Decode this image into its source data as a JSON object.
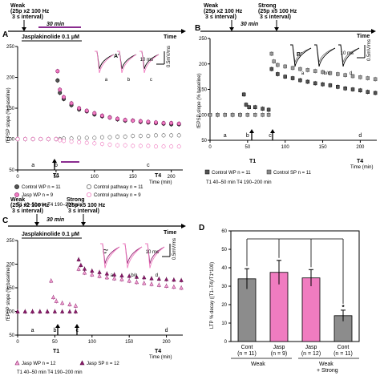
{
  "colors": {
    "black": "#000000",
    "magenta": "#8b1a6b",
    "pink": "#f07cc0",
    "grey": "#8c8c8c",
    "dark": "#444444",
    "purple_bar": "#8a2c8f",
    "light_pink": "#f4a6d3"
  },
  "common": {
    "time_label": "Time",
    "time_axis_label": "Time (min)",
    "ylabel": "fEPSP slope (% baseline)",
    "windows_note": "T1 40–50 min  T4 190–200 min",
    "T1": "T1",
    "T4": "T4",
    "weak_stim": [
      "Weak",
      "(25p x2 100 Hz",
      "3 s interval)"
    ],
    "strong_stim": [
      "Strong",
      "(25p x5 100 Hz",
      "3 s interval)"
    ],
    "scale_ms": "10 ms",
    "scale_mv": "0.5mV/ms"
  },
  "panels": {
    "A": {
      "letter": "A",
      "inset_letter": "A′",
      "interval_label": "30 min",
      "drug_label": "Jasplakinolide 0.1 μM",
      "trace_labels": [
        "a",
        "b",
        "c"
      ],
      "phase_labels": [
        "a",
        "b",
        "c"
      ],
      "legend": [
        "Control WP n = 11",
        "Control pathway n = 11",
        "Jasp WP n = 9",
        "Control pathway n = 9"
      ]
    },
    "B": {
      "letter": "B",
      "inset_letter": "B′",
      "interval_label": "30 min",
      "trace_labels": [
        "a",
        "b/c",
        "d"
      ],
      "phase_labels": [
        "a",
        "b",
        "c",
        "d"
      ],
      "legend": [
        "Control WP n = 11",
        "Control SP n = 11"
      ]
    },
    "C": {
      "letter": "C",
      "inset_letter": "C′",
      "interval_label": "30 min",
      "drug_label": "Jasplakinolide 0.1 μM",
      "trace_labels": [
        "a",
        "b/c",
        "d"
      ],
      "phase_labels": [
        "a",
        "b",
        "c",
        "d"
      ],
      "legend": [
        "Jasp WP n = 12",
        "Jasp SP n = 12"
      ]
    },
    "D": {
      "letter": "D",
      "ylabel": "LTP % decay ((T1–T4)/T1*100)",
      "group_weak": "Weak",
      "group_weak_strong": [
        "Weak",
        "+ Strong"
      ],
      "significance": "*"
    }
  },
  "chart_data": [
    {
      "panel": "A",
      "type": "scatter",
      "xlabel": "Time (min)",
      "ylabel": "fEPSP slope (% baseline)",
      "xlim": [
        0,
        200
      ],
      "ylim": [
        50,
        250
      ],
      "xticks": [
        0,
        50,
        100,
        150,
        200
      ],
      "yticks": [
        50,
        100,
        150,
        200,
        250
      ],
      "phase_x": [
        20,
        50,
        170
      ],
      "series": [
        {
          "name": "Control WP n = 11",
          "x": [
            0,
            10,
            20,
            30,
            40,
            50,
            52,
            55,
            60,
            70,
            80,
            90,
            100,
            110,
            120,
            130,
            140,
            150,
            160,
            170,
            180,
            190,
            200,
            210
          ],
          "y": [
            100,
            100,
            100,
            100,
            100,
            100,
            195,
            175,
            165,
            155,
            148,
            145,
            140,
            137,
            135,
            132,
            130,
            130,
            128,
            127,
            126,
            125,
            124,
            124
          ]
        },
        {
          "name": "Control pathway n = 11",
          "x": [
            0,
            10,
            20,
            30,
            40,
            50,
            55,
            60,
            70,
            80,
            90,
            100,
            110,
            120,
            130,
            140,
            150,
            160,
            170,
            180,
            190,
            200,
            210
          ],
          "y": [
            100,
            100,
            100,
            100,
            100,
            100,
            100,
            101,
            101,
            102,
            102,
            102,
            103,
            103,
            104,
            104,
            105,
            105,
            105,
            106,
            106,
            106,
            106
          ]
        },
        {
          "name": "Jasp WP n = 9",
          "x": [
            0,
            10,
            20,
            30,
            40,
            50,
            52,
            55,
            60,
            70,
            80,
            90,
            100,
            110,
            120,
            130,
            140,
            150,
            160,
            170,
            180,
            190,
            200,
            210
          ],
          "y": [
            100,
            100,
            100,
            100,
            100,
            100,
            210,
            180,
            168,
            158,
            150,
            146,
            142,
            138,
            135,
            133,
            131,
            130,
            129,
            128,
            127,
            126,
            126,
            125
          ]
        },
        {
          "name": "Control pathway n = 9",
          "x": [
            0,
            10,
            20,
            30,
            40,
            50,
            55,
            60,
            70,
            80,
            90,
            100,
            110,
            120,
            130,
            140,
            150,
            160,
            170,
            180,
            190,
            200,
            210
          ],
          "y": [
            100,
            100,
            100,
            100,
            100,
            100,
            98,
            97,
            96,
            95,
            94,
            93,
            92,
            91,
            90,
            90,
            89,
            89,
            89,
            88,
            88,
            88,
            88
          ]
        }
      ]
    },
    {
      "panel": "B",
      "type": "scatter",
      "xlabel": "Time (min)",
      "ylabel": "fEPSP slope (% baseline)",
      "xlim": [
        0,
        220
      ],
      "ylim": [
        50,
        250
      ],
      "xticks": [
        0,
        50,
        100,
        150,
        200
      ],
      "yticks": [
        50,
        100,
        150,
        200,
        250
      ],
      "phase_x": [
        20,
        50,
        80,
        200
      ],
      "series": [
        {
          "name": "Control WP n = 11",
          "x": [
            0,
            10,
            20,
            30,
            40,
            45,
            48,
            52,
            60,
            70,
            78,
            82,
            90,
            100,
            110,
            120,
            130,
            140,
            150,
            160,
            170,
            180,
            190,
            200,
            210,
            220
          ],
          "y": [
            100,
            100,
            100,
            100,
            100,
            140,
            120,
            115,
            115,
            112,
            110,
            190,
            180,
            175,
            172,
            168,
            165,
            162,
            160,
            158,
            155,
            152,
            150,
            148,
            145,
            143
          ]
        },
        {
          "name": "Control SP n = 11",
          "x": [
            0,
            10,
            20,
            30,
            40,
            50,
            60,
            70,
            78,
            82,
            85,
            90,
            100,
            110,
            120,
            130,
            140,
            150,
            160,
            170,
            180,
            190,
            200,
            210,
            220
          ],
          "y": [
            100,
            100,
            100,
            100,
            100,
            100,
            100,
            100,
            100,
            220,
            205,
            198,
            195,
            192,
            190,
            188,
            186,
            184,
            182,
            180,
            178,
            176,
            174,
            172,
            170
          ]
        }
      ]
    },
    {
      "panel": "C",
      "type": "scatter",
      "xlabel": "Time (min)",
      "ylabel": "fEPSP slope (% baseline)",
      "xlim": [
        0,
        220
      ],
      "ylim": [
        50,
        250
      ],
      "xticks": [
        0,
        50,
        100,
        150,
        200
      ],
      "yticks": [
        50,
        100,
        150,
        200,
        250
      ],
      "phase_x": [
        20,
        50,
        80,
        200
      ],
      "series": [
        {
          "name": "Jasp WP n = 12",
          "x": [
            0,
            10,
            20,
            30,
            40,
            45,
            48,
            52,
            60,
            70,
            78,
            82,
            90,
            100,
            110,
            120,
            130,
            140,
            150,
            160,
            170,
            180,
            190,
            200,
            210,
            220
          ],
          "y": [
            100,
            100,
            100,
            100,
            100,
            165,
            130,
            122,
            118,
            115,
            112,
            190,
            182,
            178,
            175,
            172,
            170,
            168,
            165,
            162,
            160,
            158,
            156,
            154,
            152,
            150
          ]
        },
        {
          "name": "Jasp SP n = 12",
          "x": [
            0,
            10,
            20,
            30,
            40,
            50,
            60,
            70,
            78,
            82,
            85,
            90,
            100,
            110,
            120,
            130,
            140,
            150,
            160,
            170,
            180,
            190,
            200,
            210,
            220
          ],
          "y": [
            100,
            100,
            100,
            100,
            100,
            100,
            100,
            100,
            100,
            210,
            198,
            190,
            186,
            183,
            180,
            178,
            176,
            175,
            173,
            172,
            170,
            169,
            168,
            167,
            166
          ]
        }
      ]
    },
    {
      "panel": "D",
      "type": "bar",
      "ylabel": "LTP % decay ((T1–T4)/T1*100)",
      "ylim": [
        0,
        60
      ],
      "yticks": [
        0,
        10,
        20,
        30,
        40,
        50,
        60
      ],
      "categories": [
        "Cont (n = 11)",
        "Jasp (n = 9)",
        "Jasp (n = 12)",
        "Cont (n = 11)"
      ],
      "category_names": [
        "Cont",
        "Jasp",
        "Jasp",
        "Cont"
      ],
      "category_ns": [
        "(n = 11)",
        "(n = 9)",
        "(n = 12)",
        "(n = 11)"
      ],
      "values": [
        34,
        37.5,
        34.5,
        14
      ],
      "errors": [
        5.5,
        6.5,
        4.5,
        3
      ],
      "colors": [
        "#8c8c8c",
        "#f07cc0",
        "#f07cc0",
        "#8c8c8c"
      ]
    }
  ]
}
